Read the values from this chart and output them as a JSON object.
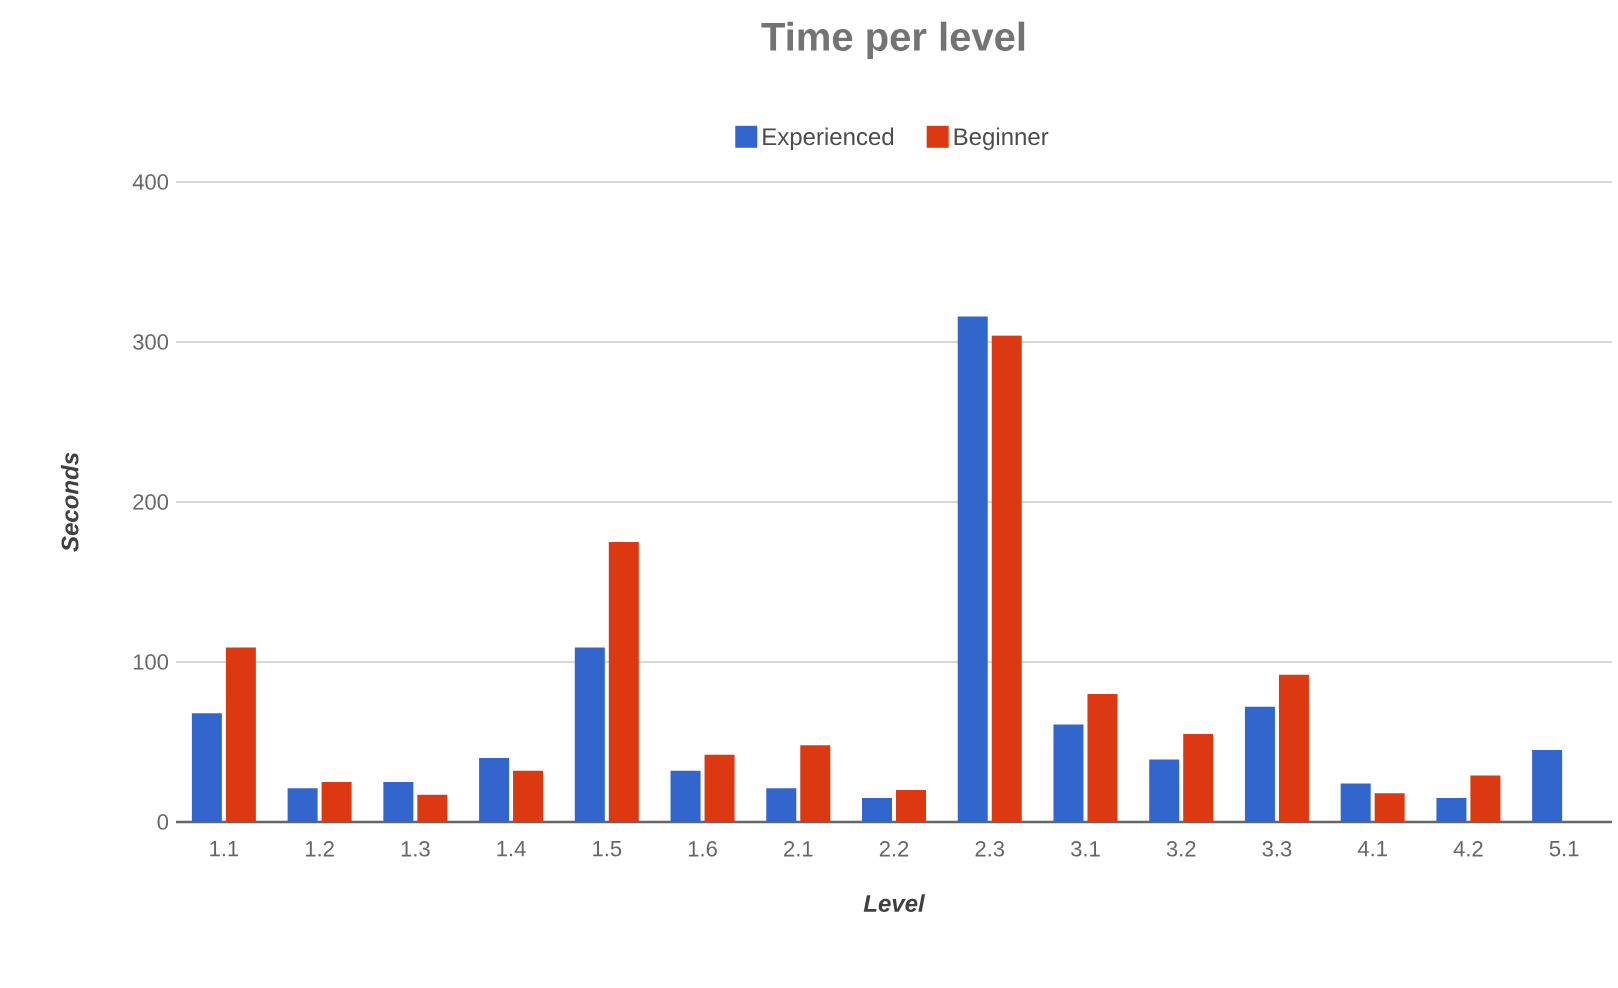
{
  "chart_data": {
    "type": "bar",
    "title": "Time per level",
    "xlabel": "Level",
    "ylabel": "Seconds",
    "categories": [
      "1.1",
      "1.2",
      "1.3",
      "1.4",
      "1.5",
      "1.6",
      "2.1",
      "2.2",
      "2.3",
      "3.1",
      "3.2",
      "3.3",
      "4.1",
      "4.2",
      "5.1"
    ],
    "series": [
      {
        "name": "Experienced",
        "color": "#3366cc",
        "values": [
          68,
          21,
          25,
          40,
          109,
          32,
          21,
          15,
          316,
          61,
          39,
          72,
          24,
          15,
          45
        ]
      },
      {
        "name": "Beginner",
        "color": "#dc3912",
        "values": [
          109,
          25,
          17,
          32,
          175,
          42,
          48,
          20,
          304,
          80,
          55,
          92,
          18,
          29,
          null
        ]
      }
    ],
    "ylim": [
      0,
      400
    ],
    "yticks": [
      0,
      100,
      200,
      300,
      400
    ],
    "grid": "y",
    "legend": "top"
  }
}
